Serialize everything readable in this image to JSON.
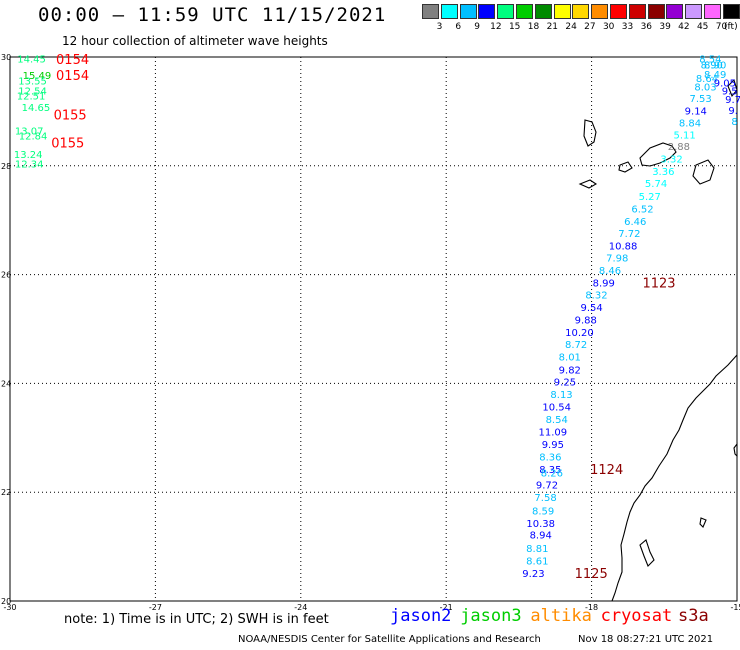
{
  "header": {
    "title": "00:00 – 11:59 UTC 11/15/2021",
    "subtitle": "12 hour collection of altimeter wave heights"
  },
  "legend": {
    "unit": "(ft)",
    "bins": [
      {
        "label": "3",
        "color": "#808080"
      },
      {
        "label": "6",
        "color": "#00ffff"
      },
      {
        "label": "9",
        "color": "#00bfff"
      },
      {
        "label": "12",
        "color": "#0000ff"
      },
      {
        "label": "15",
        "color": "#00ff7f"
      },
      {
        "label": "18",
        "color": "#00cd00"
      },
      {
        "label": "21",
        "color": "#008b00"
      },
      {
        "label": "24",
        "color": "#ffff00"
      },
      {
        "label": "27",
        "color": "#ffd700"
      },
      {
        "label": "30",
        "color": "#ff8c00"
      },
      {
        "label": "33",
        "color": "#ff0000"
      },
      {
        "label": "36",
        "color": "#cd0000"
      },
      {
        "label": "39",
        "color": "#8b0000"
      },
      {
        "label": "42",
        "color": "#9400d3"
      },
      {
        "label": "45",
        "color": "#cc99ff"
      },
      {
        "label": "70",
        "color": "#ff66ff"
      },
      {
        "label": "",
        "color": "#000000"
      }
    ]
  },
  "map": {
    "lon_ticks": [
      "-30",
      "-27",
      "-24",
      "-21",
      "-18",
      "-15"
    ],
    "lat_ticks": [
      "30",
      "28",
      "26",
      "24",
      "22",
      "20"
    ],
    "lon_range": [
      -30,
      -15
    ],
    "lat_range": [
      20,
      30
    ]
  },
  "track_west": [
    {
      "v": "14.45",
      "lon": -29.85,
      "lat": 29.96,
      "c": "#00ff7f"
    },
    {
      "v": "15.49",
      "lon": -29.74,
      "lat": 29.66,
      "c": "#00cd00"
    },
    {
      "v": "13.55",
      "lon": -29.83,
      "lat": 29.56,
      "c": "#00ff7f"
    },
    {
      "v": "12.54",
      "lon": -29.83,
      "lat": 29.38,
      "c": "#00ff7f"
    },
    {
      "v": "12.51",
      "lon": -29.86,
      "lat": 29.28,
      "c": "#00ff7f"
    },
    {
      "v": "14.65",
      "lon": -29.76,
      "lat": 29.07,
      "c": "#00ff7f"
    },
    {
      "v": "13.07",
      "lon": -29.9,
      "lat": 28.64,
      "c": "#00ff7f"
    },
    {
      "v": "12.84",
      "lon": -29.82,
      "lat": 28.55,
      "c": "#00ff7f"
    },
    {
      "v": "13.24",
      "lon": -29.92,
      "lat": 28.21,
      "c": "#00ff7f"
    },
    {
      "v": "12.34",
      "lon": -29.9,
      "lat": 28.03,
      "c": "#00ff7f"
    }
  ],
  "track_east_top": [
    {
      "v": "8.54",
      "lon": -15.55,
      "lat": 29.96,
      "c": "#00bfff"
    },
    {
      "v": "8.90",
      "lon": -15.45,
      "lat": 29.85,
      "c": "#00bfff"
    },
    {
      "v": "8.90",
      "lon": -15.52,
      "lat": 29.85,
      "c": "#00bfff"
    },
    {
      "v": "8.49",
      "lon": -15.45,
      "lat": 29.68,
      "c": "#00bfff"
    },
    {
      "v": "8.64",
      "lon": -15.62,
      "lat": 29.61,
      "c": "#00bfff"
    },
    {
      "v": "9.05",
      "lon": -15.25,
      "lat": 29.52,
      "c": "#0000ff"
    },
    {
      "v": "8.03",
      "lon": -15.65,
      "lat": 29.45,
      "c": "#00bfff"
    },
    {
      "v": "9.5",
      "lon": -15.15,
      "lat": 29.38,
      "c": "#0000ff"
    },
    {
      "v": "7.53",
      "lon": -15.75,
      "lat": 29.24,
      "c": "#00bfff"
    },
    {
      "v": "9.7",
      "lon": -15.08,
      "lat": 29.22,
      "c": "#0000ff"
    },
    {
      "v": "9.14",
      "lon": -15.85,
      "lat": 29.01,
      "c": "#0000ff"
    },
    {
      "v": "9.",
      "lon": -15.08,
      "lat": 29.02,
      "c": "#0000ff"
    },
    {
      "v": "8.84",
      "lon": -15.97,
      "lat": 28.79,
      "c": "#00bfff"
    },
    {
      "v": "8",
      "lon": -15.05,
      "lat": 28.82,
      "c": "#00bfff"
    },
    {
      "v": "5.11",
      "lon": -16.08,
      "lat": 28.57,
      "c": "#00ffff"
    },
    {
      "v": "2.88",
      "lon": -16.2,
      "lat": 28.36,
      "c": "#808080"
    },
    {
      "v": "3.32",
      "lon": -16.35,
      "lat": 28.13,
      "c": "#00ffff"
    },
    {
      "v": "3.36",
      "lon": -16.52,
      "lat": 27.9,
      "c": "#00ffff"
    },
    {
      "v": "5.74",
      "lon": -16.67,
      "lat": 27.68,
      "c": "#00ffff"
    },
    {
      "v": "5.27",
      "lon": -16.8,
      "lat": 27.44,
      "c": "#00ffff"
    },
    {
      "v": "6.52",
      "lon": -16.95,
      "lat": 27.21,
      "c": "#00bfff"
    },
    {
      "v": "6.46",
      "lon": -17.1,
      "lat": 26.98,
      "c": "#00bfff"
    },
    {
      "v": "7.72",
      "lon": -17.22,
      "lat": 26.76,
      "c": "#00bfff"
    },
    {
      "v": "10.88",
      "lon": -17.35,
      "lat": 26.53,
      "c": "#0000ff"
    },
    {
      "v": "7.98",
      "lon": -17.47,
      "lat": 26.31,
      "c": "#00bfff"
    },
    {
      "v": "8.46",
      "lon": -17.62,
      "lat": 26.08,
      "c": "#00bfff"
    },
    {
      "v": "8.99",
      "lon": -17.75,
      "lat": 25.85,
      "c": "#0000ff"
    },
    {
      "v": "8.32",
      "lon": -17.9,
      "lat": 25.63,
      "c": "#00bfff"
    },
    {
      "v": "9.54",
      "lon": -18.0,
      "lat": 25.4,
      "c": "#0000ff"
    },
    {
      "v": "9.88",
      "lon": -18.12,
      "lat": 25.17,
      "c": "#0000ff"
    },
    {
      "v": "10.20",
      "lon": -18.25,
      "lat": 24.94,
      "c": "#0000ff"
    },
    {
      "v": "8.72",
      "lon": -18.32,
      "lat": 24.72,
      "c": "#00bfff"
    },
    {
      "v": "8.01",
      "lon": -18.45,
      "lat": 24.49,
      "c": "#00bfff"
    },
    {
      "v": "9.82",
      "lon": -18.45,
      "lat": 24.25,
      "c": "#0000ff"
    },
    {
      "v": "9.25",
      "lon": -18.55,
      "lat": 24.03,
      "c": "#0000ff"
    },
    {
      "v": "8.13",
      "lon": -18.62,
      "lat": 23.8,
      "c": "#00bfff"
    },
    {
      "v": "10.54",
      "lon": -18.72,
      "lat": 23.57,
      "c": "#0000ff"
    },
    {
      "v": "8.54",
      "lon": -18.72,
      "lat": 23.34,
      "c": "#00bfff"
    },
    {
      "v": "11.09",
      "lon": -18.8,
      "lat": 23.11,
      "c": "#0000ff"
    },
    {
      "v": "9.95",
      "lon": -18.8,
      "lat": 22.88,
      "c": "#0000ff"
    },
    {
      "v": "8.36",
      "lon": -18.85,
      "lat": 22.65,
      "c": "#00bfff"
    },
    {
      "v": "8.35",
      "lon": -18.85,
      "lat": 22.42,
      "c": "#0000ff"
    },
    {
      "v": "8.26",
      "lon": -18.82,
      "lat": 22.35,
      "c": "#00bfff"
    },
    {
      "v": "9.72",
      "lon": -18.92,
      "lat": 22.13,
      "c": "#0000ff"
    },
    {
      "v": "7.58",
      "lon": -18.95,
      "lat": 21.9,
      "c": "#00bfff"
    },
    {
      "v": "8.59",
      "lon": -19.0,
      "lat": 21.66,
      "c": "#00bfff"
    },
    {
      "v": "10.38",
      "lon": -19.05,
      "lat": 21.43,
      "c": "#0000ff"
    },
    {
      "v": "8.94",
      "lon": -19.05,
      "lat": 21.21,
      "c": "#0000ff"
    },
    {
      "v": "8.81",
      "lon": -19.12,
      "lat": 20.97,
      "c": "#00bfff"
    },
    {
      "v": "8.61",
      "lon": -19.12,
      "lat": 20.74,
      "c": "#00bfff"
    },
    {
      "v": "9.23",
      "lon": -19.2,
      "lat": 20.51,
      "c": "#0000ff"
    }
  ],
  "time_labels": [
    {
      "v": "0154",
      "lon": -29.05,
      "lat": 29.96,
      "c": "#ff0000"
    },
    {
      "v": "0154",
      "lon": -29.05,
      "lat": 29.66,
      "c": "#ff0000"
    },
    {
      "v": "0155",
      "lon": -29.1,
      "lat": 28.94,
      "c": "#ff0000"
    },
    {
      "v": "0155",
      "lon": -29.15,
      "lat": 28.42,
      "c": "#ff0000"
    },
    {
      "v": "1123",
      "lon": -16.95,
      "lat": 25.85,
      "c": "#8b0000"
    },
    {
      "v": "1124",
      "lon": -18.03,
      "lat": 22.42,
      "c": "#8b0000"
    },
    {
      "v": "1125",
      "lon": -18.35,
      "lat": 20.51,
      "c": "#8b0000"
    }
  ],
  "footer": {
    "note": "note: 1) Time is in UTC; 2) SWH is in feet",
    "satellites": [
      {
        "name": "jason2",
        "color": "#0000ff"
      },
      {
        "name": "jason3",
        "color": "#00cd00"
      },
      {
        "name": "altika",
        "color": "#ff8c00"
      },
      {
        "name": "cryosat",
        "color": "#ff0000"
      },
      {
        "name": "s3a",
        "color": "#8b0000"
      }
    ],
    "credit": "NOAA/NESDIS Center for Satellite Applications and Research",
    "stamp": "Nov 18 08:27:21 UTC 2021"
  }
}
